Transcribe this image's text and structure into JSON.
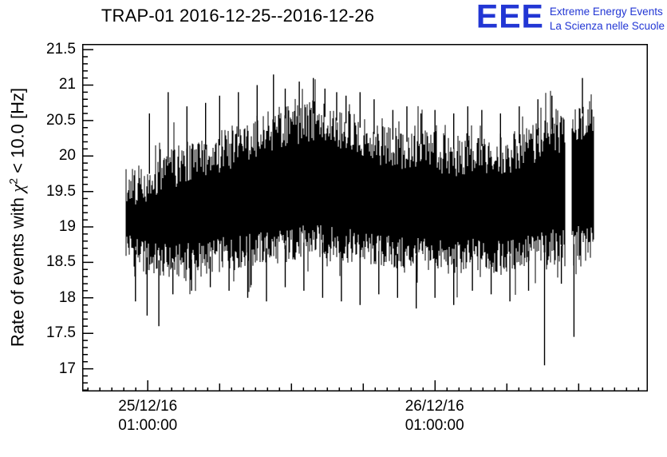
{
  "header": {
    "title": "TRAP-01 2016-12-25--2016-12-26",
    "logo": {
      "acronym": "EEE",
      "line1": "Extreme Energy Events",
      "line2": "La Scienza nelle Scuole",
      "color": "#2236d4"
    }
  },
  "chart_data": {
    "type": "line",
    "title": "TRAP-01 2016-12-25--2016-12-26",
    "ylabel": {
      "prefix": "Rate of events with ",
      "chi": "χ",
      "sup": "2",
      "suffix": " < 10.0 [Hz]"
    },
    "xlabel": "",
    "ylim": [
      16.68,
      21.58
    ],
    "y_ticks": [
      17,
      17.5,
      18,
      18.5,
      19,
      19.5,
      20,
      20.5,
      21,
      21.5
    ],
    "y_minor_step": 0.1,
    "x_ticks": [
      {
        "frac": 0.116,
        "line1": "25/12/16",
        "line2": "01:00:00"
      },
      {
        "frac": 0.623,
        "line1": "26/12/16",
        "line2": "01:00:00"
      }
    ],
    "x_minor_frac_step": 0.02116,
    "grid": false,
    "legend": "none",
    "series_color": "#000000",
    "series_name": "event-rate",
    "data_span": [
      0.0776,
      0.905
    ],
    "envelope": {
      "t": [
        0,
        0.05,
        0.1,
        0.15,
        0.2,
        0.25,
        0.3,
        0.35,
        0.4,
        0.45,
        0.5,
        0.55,
        0.6,
        0.65,
        0.7,
        0.75,
        0.8,
        0.85,
        0.9,
        0.95,
        1
      ],
      "lo": [
        18.55,
        18.35,
        18.3,
        18.35,
        18.4,
        18.45,
        18.5,
        18.55,
        18.6,
        18.55,
        18.5,
        18.45,
        18.4,
        18.4,
        18.35,
        18.4,
        18.35,
        18.45,
        18.5,
        18.55,
        18.6
      ],
      "hi": [
        19.85,
        19.95,
        20.15,
        20.25,
        20.35,
        20.5,
        20.65,
        20.75,
        20.8,
        20.7,
        20.6,
        20.45,
        20.4,
        20.35,
        20.3,
        20.35,
        20.3,
        20.4,
        20.55,
        20.7,
        20.9
      ]
    },
    "spikes_up": [
      [
        0.05,
        20.6
      ],
      [
        0.09,
        20.9
      ],
      [
        0.13,
        20.7
      ],
      [
        0.17,
        20.75
      ],
      [
        0.2,
        20.85
      ],
      [
        0.24,
        20.9
      ],
      [
        0.28,
        21.0
      ],
      [
        0.315,
        21.15
      ],
      [
        0.34,
        20.95
      ],
      [
        0.37,
        21.05
      ],
      [
        0.4,
        21.1
      ],
      [
        0.425,
        20.95
      ],
      [
        0.45,
        20.9
      ],
      [
        0.47,
        20.85
      ],
      [
        0.5,
        20.9
      ],
      [
        0.53,
        20.8
      ],
      [
        0.57,
        20.65
      ],
      [
        0.6,
        20.7
      ],
      [
        0.63,
        20.6
      ],
      [
        0.66,
        20.65
      ],
      [
        0.7,
        20.6
      ],
      [
        0.73,
        20.7
      ],
      [
        0.76,
        20.65
      ],
      [
        0.8,
        20.6
      ],
      [
        0.84,
        20.7
      ],
      [
        0.88,
        20.8
      ],
      [
        0.91,
        20.85
      ],
      [
        0.975,
        21.1
      ]
    ],
    "spikes_down": [
      [
        0.02,
        17.95
      ],
      [
        0.045,
        17.75
      ],
      [
        0.07,
        17.6
      ],
      [
        0.1,
        18.05
      ],
      [
        0.14,
        18.1
      ],
      [
        0.18,
        18.15
      ],
      [
        0.22,
        18.1
      ],
      [
        0.26,
        18.0
      ],
      [
        0.3,
        17.95
      ],
      [
        0.34,
        18.15
      ],
      [
        0.38,
        18.1
      ],
      [
        0.42,
        18.0
      ],
      [
        0.46,
        17.95
      ],
      [
        0.5,
        17.9
      ],
      [
        0.54,
        18.05
      ],
      [
        0.58,
        18.0
      ],
      [
        0.62,
        17.85
      ],
      [
        0.66,
        18.0
      ],
      [
        0.7,
        17.9
      ],
      [
        0.74,
        18.1
      ],
      [
        0.78,
        18.05
      ],
      [
        0.82,
        17.95
      ],
      [
        0.86,
        18.1
      ],
      [
        0.894,
        17.05
      ],
      [
        0.93,
        18.2
      ],
      [
        0.957,
        17.45
      ]
    ],
    "gaps": [
      [
        0.938,
        0.952
      ]
    ]
  }
}
